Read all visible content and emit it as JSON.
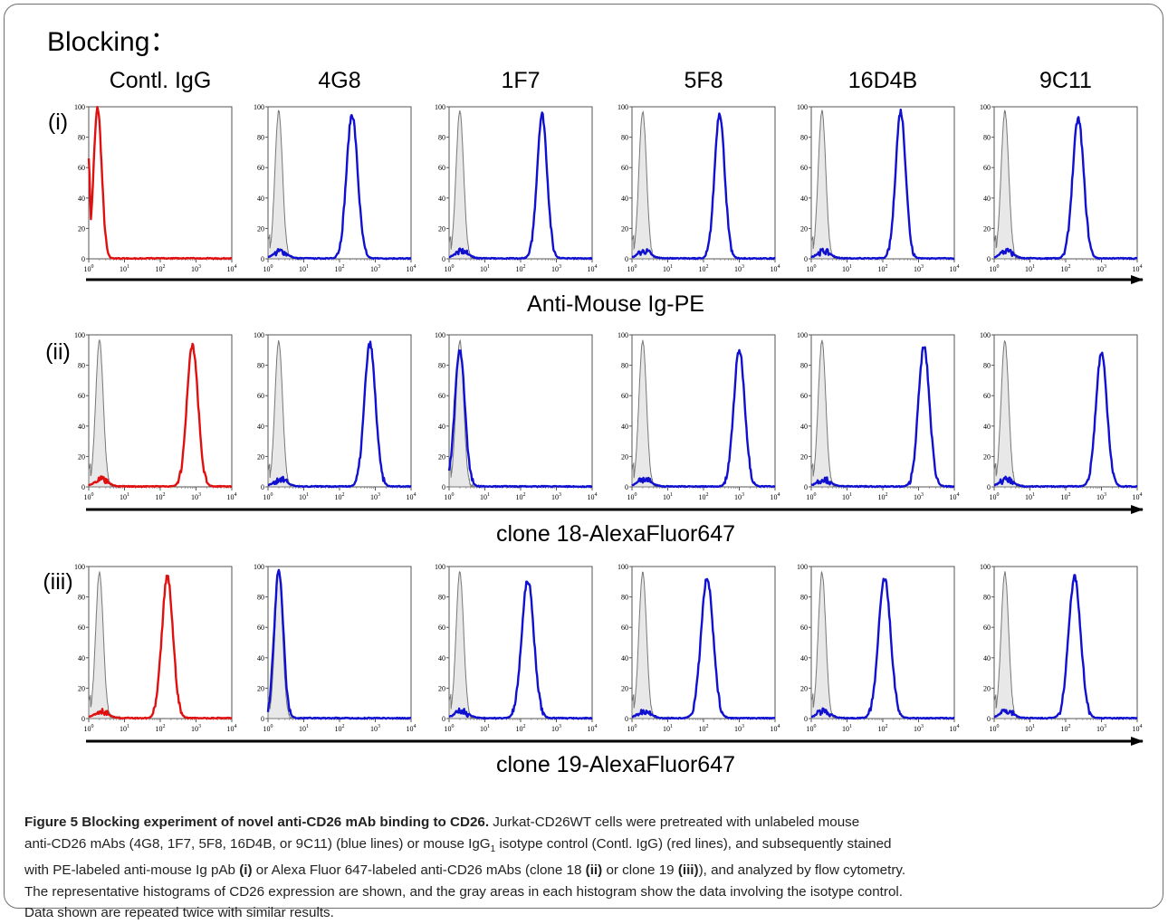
{
  "figure": {
    "heading": "Blocking：",
    "columns": [
      "Contl. IgG",
      "4G8",
      "1F7",
      "5F8",
      "16D4B",
      "9C11"
    ],
    "rows": [
      {
        "label": "(i)",
        "axis_label": "Anti-Mouse Ig-PE"
      },
      {
        "label": "(ii)",
        "axis_label": "clone 18-AlexaFluor647"
      },
      {
        "label": "(iii)",
        "axis_label": "clone 19-AlexaFluor647"
      }
    ],
    "y_ticks": [
      "0",
      "20",
      "40",
      "60",
      "80",
      "100"
    ],
    "x_ticks": [
      {
        "base": "10",
        "exp": "0"
      },
      {
        "base": "10",
        "exp": "1"
      },
      {
        "base": "10",
        "exp": "2"
      },
      {
        "base": "10",
        "exp": "3"
      },
      {
        "base": "10",
        "exp": "4"
      }
    ],
    "colors": {
      "control": "#e01010",
      "antibody": "#1010d0",
      "isotype_fill": "#e8e8e8",
      "isotype_line": "#777777"
    }
  },
  "chart_data": {
    "type": "histogram-grid",
    "x_scale": "log",
    "xlim": [
      1,
      10000
    ],
    "ylim": [
      0,
      100
    ],
    "peaks_note_units": "log10 fluorescence / % of max",
    "panels": [
      {
        "row": 0,
        "col": 0,
        "isotype": null,
        "line": "control",
        "peak": {
          "x": 0.25,
          "height": 99,
          "width": 0.16
        },
        "left_edge": 68
      },
      {
        "row": 0,
        "col": 1,
        "isotype": {
          "x": 0.3,
          "height": 97
        },
        "line": "antibody",
        "peak": {
          "x": 2.35,
          "height": 95,
          "width": 0.22
        }
      },
      {
        "row": 0,
        "col": 2,
        "isotype": {
          "x": 0.3,
          "height": 97
        },
        "line": "antibody",
        "peak": {
          "x": 2.6,
          "height": 95,
          "width": 0.2
        }
      },
      {
        "row": 0,
        "col": 3,
        "isotype": {
          "x": 0.3,
          "height": 97
        },
        "line": "antibody",
        "peak": {
          "x": 2.45,
          "height": 96,
          "width": 0.2
        }
      },
      {
        "row": 0,
        "col": 4,
        "isotype": {
          "x": 0.3,
          "height": 97
        },
        "line": "antibody",
        "peak": {
          "x": 2.5,
          "height": 97,
          "width": 0.2
        }
      },
      {
        "row": 0,
        "col": 5,
        "isotype": {
          "x": 0.3,
          "height": 97
        },
        "line": "antibody",
        "peak": {
          "x": 2.35,
          "height": 92,
          "width": 0.22
        }
      },
      {
        "row": 1,
        "col": 0,
        "isotype": {
          "x": 0.3,
          "height": 96
        },
        "line": "control",
        "peak": {
          "x": 2.9,
          "height": 93,
          "width": 0.22
        }
      },
      {
        "row": 1,
        "col": 1,
        "isotype": {
          "x": 0.3,
          "height": 96
        },
        "line": "antibody",
        "peak": {
          "x": 2.85,
          "height": 94,
          "width": 0.22
        }
      },
      {
        "row": 1,
        "col": 2,
        "isotype": {
          "x": 0.3,
          "height": 96
        },
        "line": "antibody",
        "peak": {
          "x": 0.3,
          "height": 90,
          "width": 0.2
        }
      },
      {
        "row": 1,
        "col": 3,
        "isotype": {
          "x": 0.3,
          "height": 96
        },
        "line": "antibody",
        "peak": {
          "x": 3.0,
          "height": 90,
          "width": 0.22
        }
      },
      {
        "row": 1,
        "col": 4,
        "isotype": {
          "x": 0.3,
          "height": 96
        },
        "line": "antibody",
        "peak": {
          "x": 3.15,
          "height": 92,
          "width": 0.22
        }
      },
      {
        "row": 1,
        "col": 5,
        "isotype": {
          "x": 0.3,
          "height": 96
        },
        "line": "antibody",
        "peak": {
          "x": 3.0,
          "height": 88,
          "width": 0.22
        }
      },
      {
        "row": 2,
        "col": 0,
        "isotype": {
          "x": 0.3,
          "height": 96
        },
        "line": "control",
        "peak": {
          "x": 2.2,
          "height": 93,
          "width": 0.22
        }
      },
      {
        "row": 2,
        "col": 1,
        "isotype": {
          "x": 0.3,
          "height": 97
        },
        "line": "antibody",
        "peak": {
          "x": 0.3,
          "height": 97,
          "width": 0.18
        }
      },
      {
        "row": 2,
        "col": 2,
        "isotype": {
          "x": 0.3,
          "height": 96
        },
        "line": "antibody",
        "peak": {
          "x": 2.2,
          "height": 91,
          "width": 0.24
        }
      },
      {
        "row": 2,
        "col": 3,
        "isotype": {
          "x": 0.3,
          "height": 96
        },
        "line": "antibody",
        "peak": {
          "x": 2.1,
          "height": 92,
          "width": 0.24
        }
      },
      {
        "row": 2,
        "col": 4,
        "isotype": {
          "x": 0.3,
          "height": 96
        },
        "line": "antibody",
        "peak": {
          "x": 2.05,
          "height": 92,
          "width": 0.24
        }
      },
      {
        "row": 2,
        "col": 5,
        "isotype": {
          "x": 0.3,
          "height": 96
        },
        "line": "antibody",
        "peak": {
          "x": 2.25,
          "height": 93,
          "width": 0.24
        }
      }
    ]
  },
  "caption": {
    "label": "Figure 5 Blocking experiment of novel anti-CD26 mAb binding to CD26.",
    "line1": " Jurkat-CD26WT cells were pretreated with unlabeled mouse",
    "line2_a": "anti-CD26 mAbs (4G8, 1F7, 5F8, 16D4B, or 9C11) (blue lines) or mouse IgG",
    "line2_sub": "1",
    "line2_b": " isotype control (Contl. IgG) (red lines), and subsequently stained",
    "line3_a": "with PE-labeled anti-mouse Ig pAb ",
    "line3_i": "(i)",
    "line3_b": " or Alexa Fluor 647-labeled anti-CD26 mAbs (clone 18 ",
    "line3_ii": "(ii)",
    "line3_c": " or clone 19 ",
    "line3_iii": "(iii)",
    "line3_d": "), and analyzed by flow cytometry.",
    "line4": "The representative histograms of CD26 expression are shown, and the gray areas in each histogram show the data involving the isotype control.",
    "line5": "Data shown are repeated twice with similar results."
  }
}
